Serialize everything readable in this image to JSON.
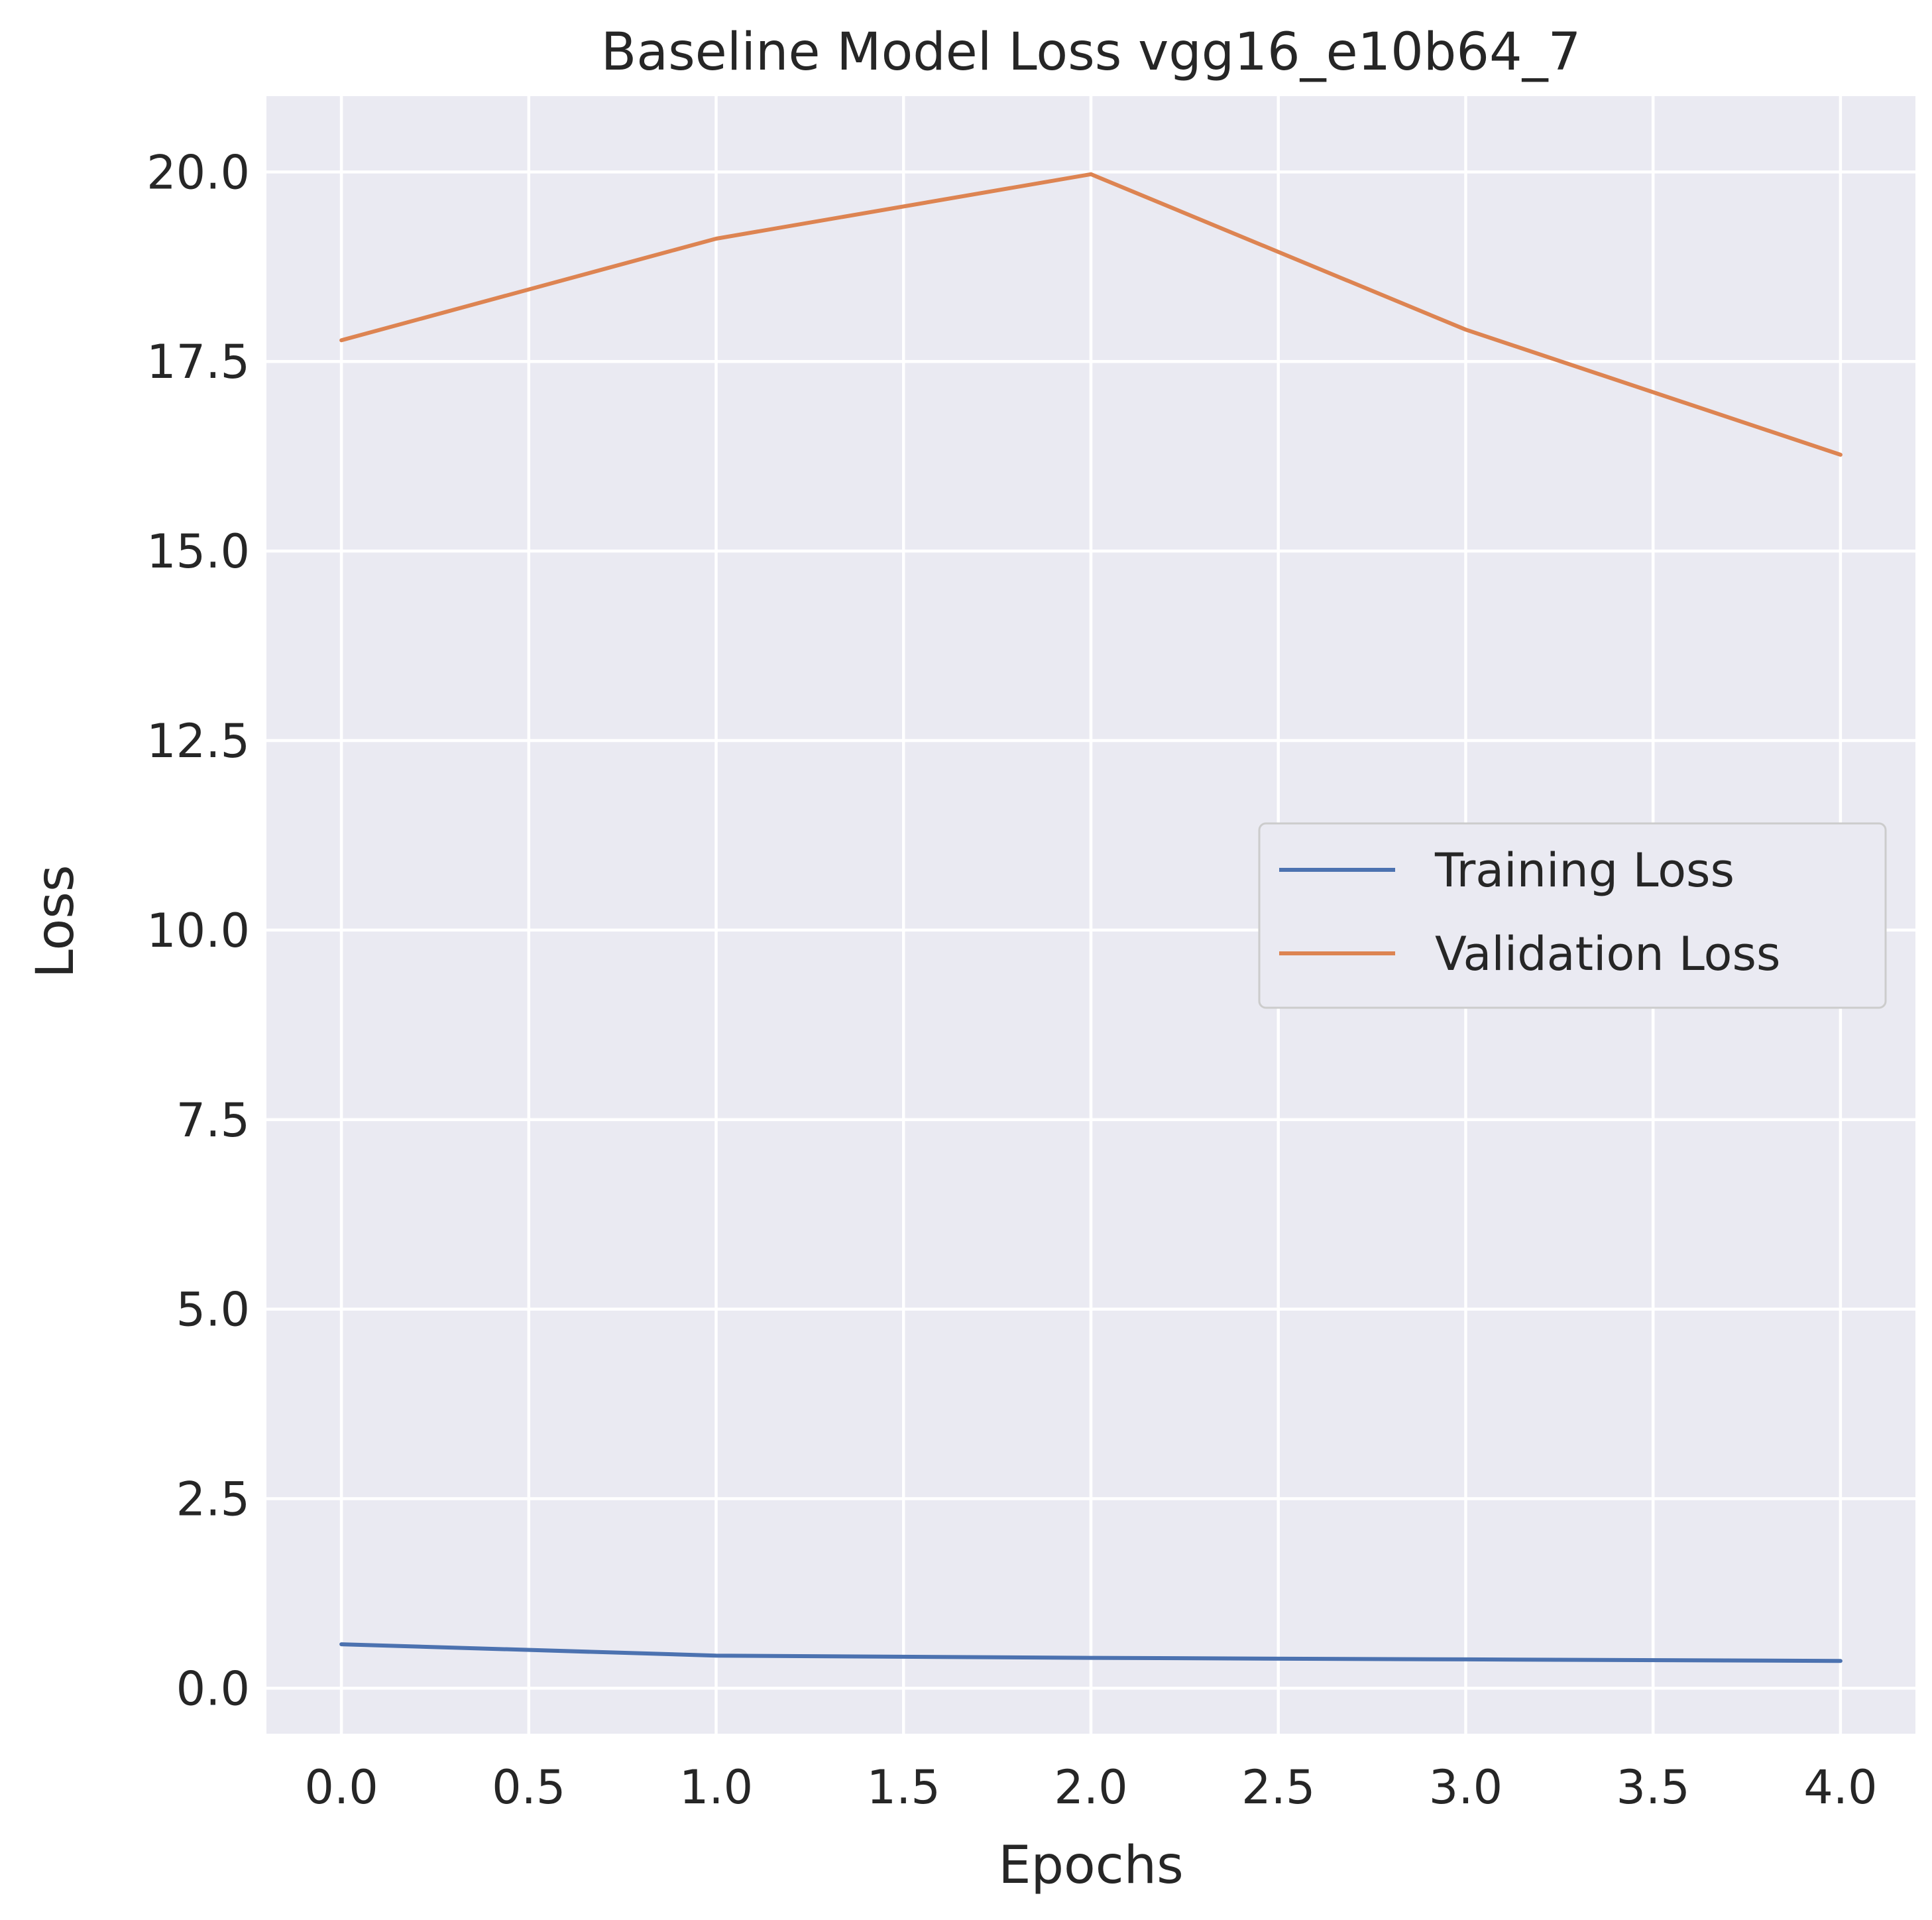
{
  "chart_data": {
    "type": "line",
    "title": "Baseline Model Loss vgg16_e10b64_7",
    "xlabel": "Epochs",
    "ylabel": "Loss",
    "x": [
      0,
      1,
      2,
      3,
      4
    ],
    "xlim": [
      -0.2,
      4.2
    ],
    "ylim": [
      -0.6,
      21.0
    ],
    "xticks": [
      0.0,
      0.5,
      1.0,
      1.5,
      2.0,
      2.5,
      3.0,
      3.5,
      4.0
    ],
    "xtick_labels": [
      "0.0",
      "0.5",
      "1.0",
      "1.5",
      "2.0",
      "2.5",
      "3.0",
      "3.5",
      "4.0"
    ],
    "yticks": [
      0.0,
      2.5,
      5.0,
      7.5,
      10.0,
      12.5,
      15.0,
      17.5,
      20.0
    ],
    "ytick_labels": [
      "0.0",
      "2.5",
      "5.0",
      "7.5",
      "10.0",
      "12.5",
      "15.0",
      "17.5",
      "20.0"
    ],
    "grid": true,
    "legend_position": "center-right",
    "background_color": "#eaeaf2",
    "series": [
      {
        "name": "Training Loss",
        "color": "#4c72b0",
        "values": [
          0.58,
          0.43,
          0.4,
          0.38,
          0.36
        ]
      },
      {
        "name": "Validation Loss",
        "color": "#dd8452",
        "values": [
          17.78,
          19.12,
          19.97,
          17.92,
          16.27
        ]
      }
    ]
  }
}
